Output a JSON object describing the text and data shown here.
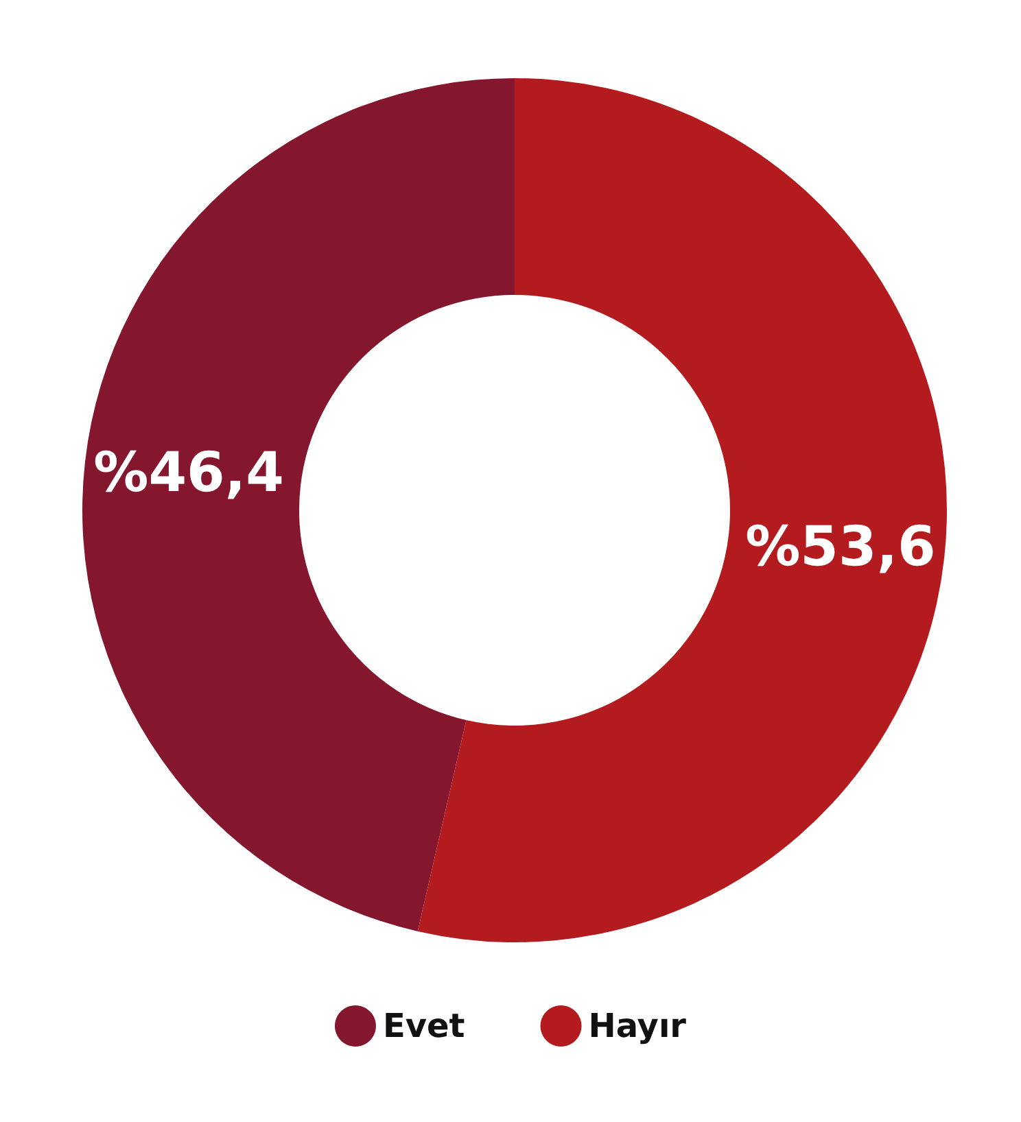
{
  "chart_data": {
    "type": "donut",
    "categories": [
      "Evet",
      "Hayır"
    ],
    "values": [
      46.4,
      53.6
    ],
    "colors": [
      "#84162e",
      "#b31b1e"
    ],
    "value_labels": [
      "%46,4",
      "%53,6"
    ],
    "legend": "bottom"
  }
}
